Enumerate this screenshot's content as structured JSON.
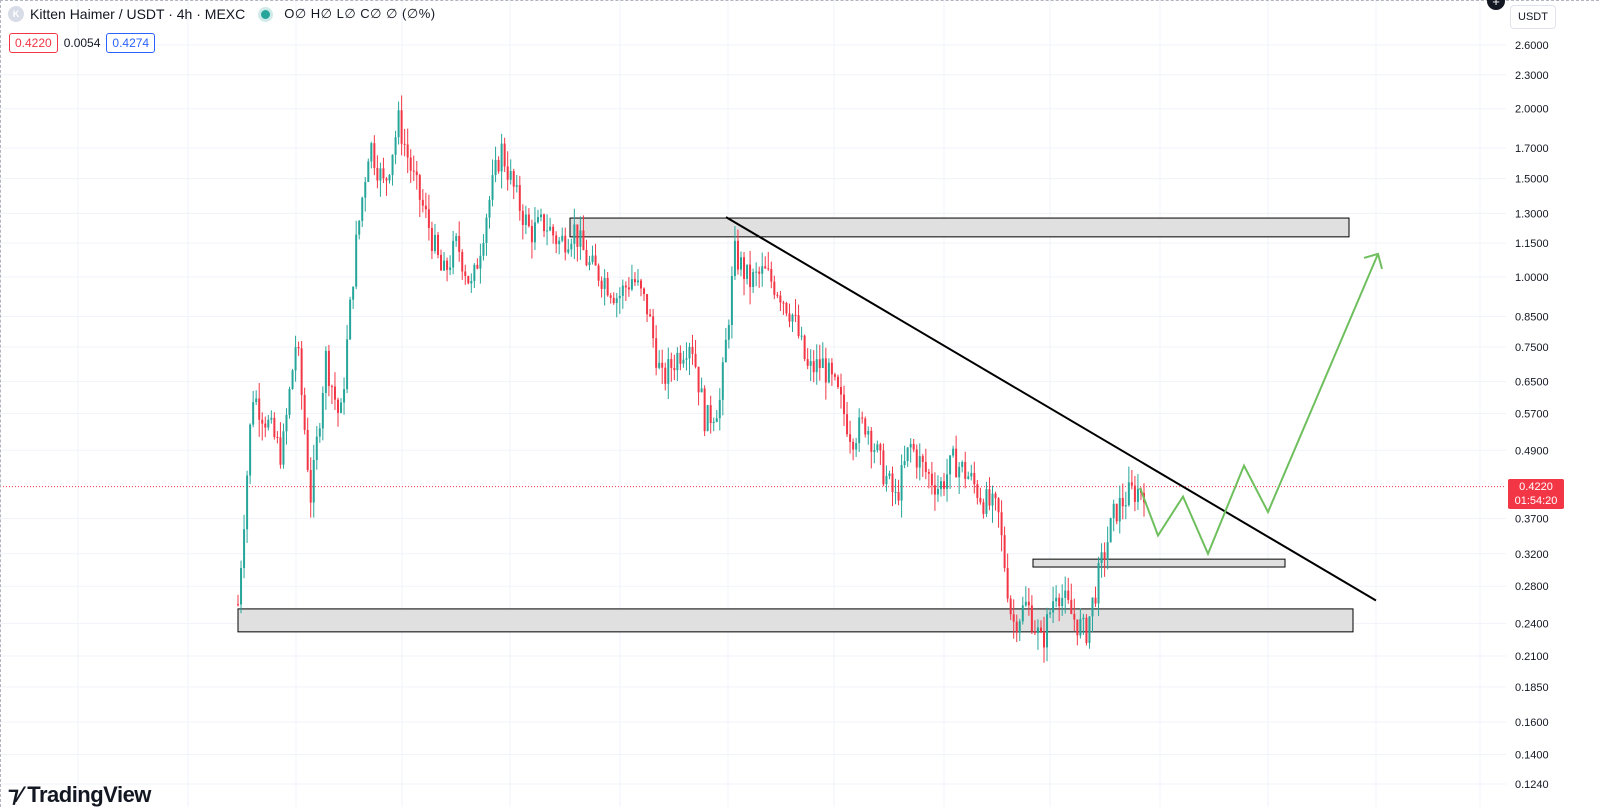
{
  "header": {
    "symbol_icon_letter": "K",
    "title": "Kitten Haimer / USDT · 4h · MEXC",
    "ohlc": "O∅ H∅ L∅ C∅ ∅ (∅%)",
    "bid": "0.4220",
    "spread": "0.0054",
    "ask": "0.4274"
  },
  "currency_button": "USDT",
  "current_price": {
    "value": "0.4220",
    "countdown": "01:54:20"
  },
  "logo_text": "TradingView",
  "colors": {
    "up": "#26a69a",
    "down": "#f23645",
    "trend": "#000000",
    "projection": "#6fbf5e",
    "zone_fill": "#e0e0e0"
  },
  "chart_data": {
    "type": "candlestick",
    "scale": "log",
    "ylim": [
      0.118,
      2.85
    ],
    "y_ticks": [
      "2.6000",
      "2.3000",
      "2.0000",
      "1.7000",
      "1.5000",
      "1.3000",
      "1.1500",
      "1.0000",
      "0.8500",
      "0.7500",
      "0.6500",
      "0.5700",
      "0.4900",
      "0.3700",
      "0.3200",
      "0.2800",
      "0.2400",
      "0.2100",
      "0.1850",
      "0.1600",
      "0.1400",
      "0.1240"
    ],
    "y_tick_values": [
      2.6,
      2.3,
      2.0,
      1.7,
      1.5,
      1.3,
      1.15,
      1.0,
      0.85,
      0.75,
      0.65,
      0.57,
      0.49,
      0.37,
      0.32,
      0.28,
      0.24,
      0.21,
      0.185,
      0.16,
      0.14,
      0.124
    ],
    "current_price": 0.422,
    "price_path": [
      0.26,
      0.62,
      0.55,
      0.48,
      0.78,
      0.4,
      0.72,
      0.55,
      1.1,
      1.75,
      1.45,
      1.9,
      1.5,
      1.25,
      1.0,
      1.15,
      0.95,
      1.3,
      1.7,
      1.4,
      1.2,
      1.25,
      1.15,
      1.22,
      1.05,
      1.0,
      0.92,
      1.0,
      0.88,
      0.65,
      0.72,
      0.78,
      0.55,
      0.6,
      1.1,
      0.98,
      1.02,
      0.95,
      0.85,
      0.68,
      0.7,
      0.62,
      0.52,
      0.55,
      0.46,
      0.4,
      0.5,
      0.45,
      0.42,
      0.47,
      0.44,
      0.4,
      0.38,
      0.24,
      0.26,
      0.22,
      0.28,
      0.25,
      0.23,
      0.3,
      0.38,
      0.41,
      0.42
    ],
    "zones": [
      {
        "price_low": 1.18,
        "price_high": 1.275
      },
      {
        "price_low": 0.303,
        "price_high": 0.313
      },
      {
        "price_low": 0.232,
        "price_high": 0.255
      }
    ],
    "trend_line": {
      "from_price": 1.28,
      "to_price": 0.264
    },
    "projection_path": [
      0.42,
      0.345,
      0.405,
      0.32,
      0.46,
      0.38,
      1.1
    ]
  }
}
